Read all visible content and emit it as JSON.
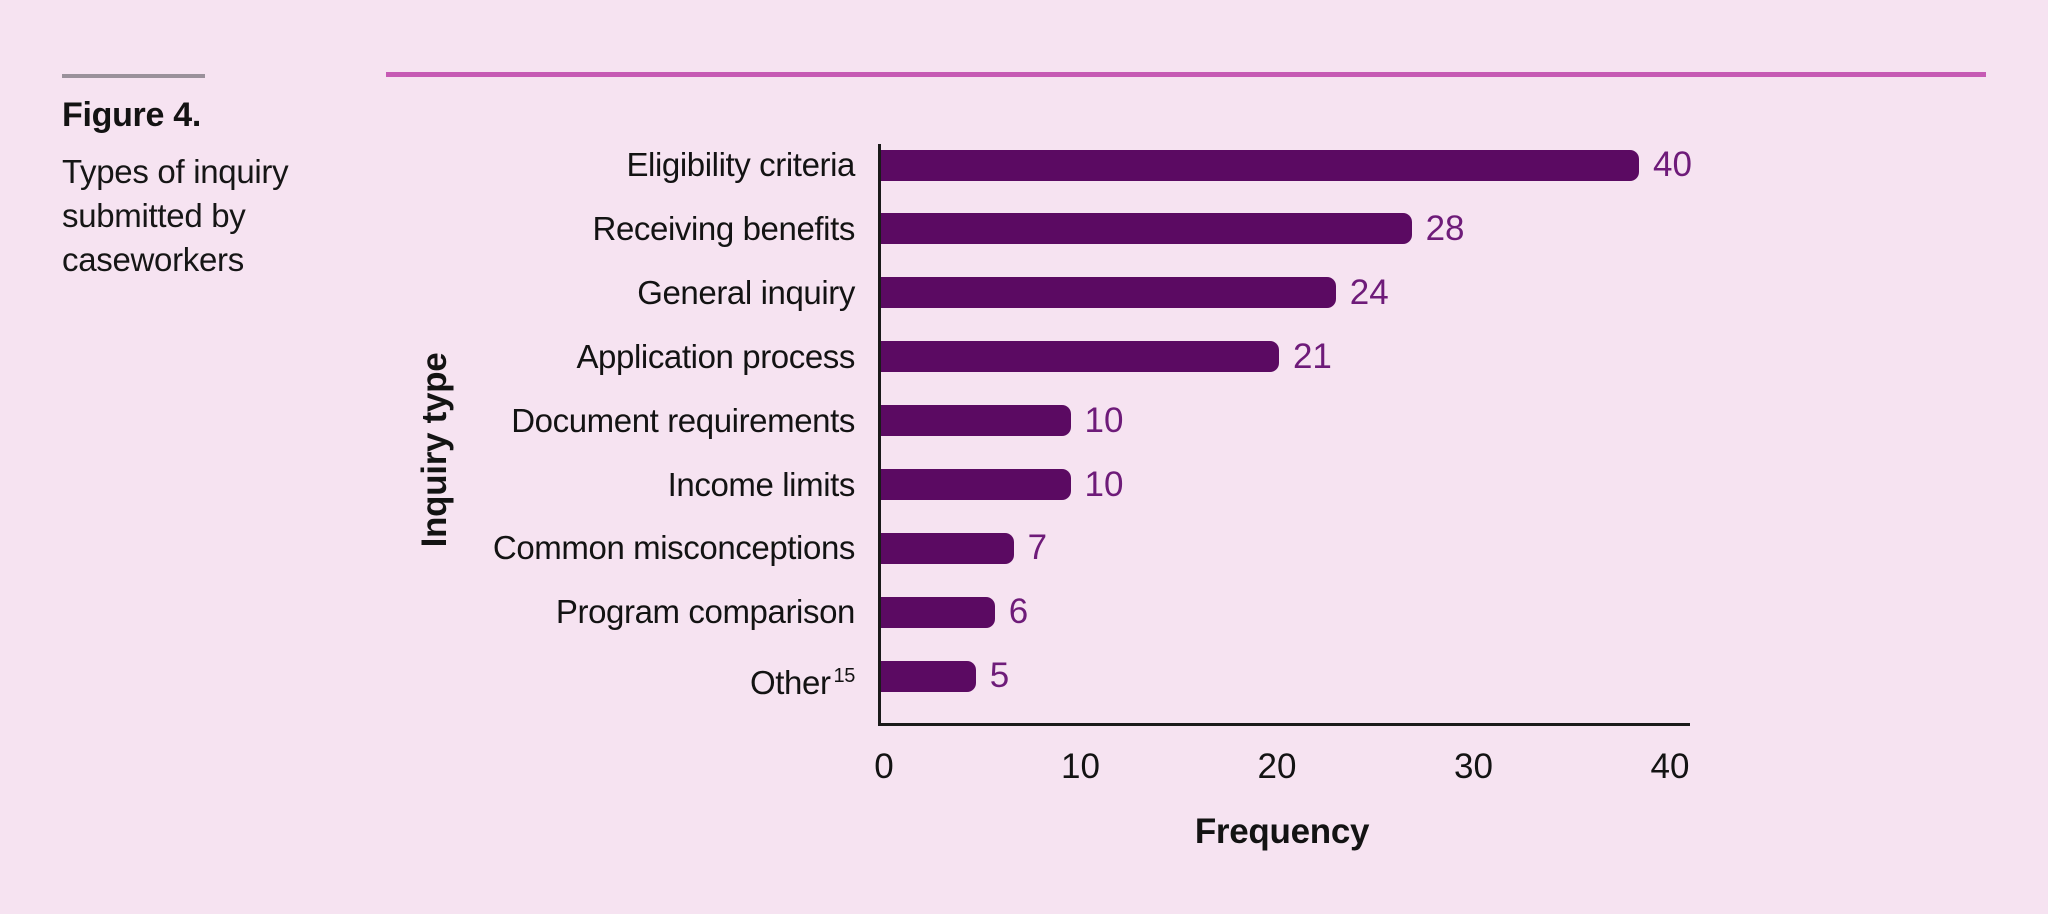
{
  "figure": {
    "label": "Figure 4.",
    "caption": "Types of inquiry submitted by caseworkers"
  },
  "chart_data": {
    "type": "bar",
    "orientation": "horizontal",
    "title": "Types of inquiry submitted by caseworkers",
    "categories": [
      "Eligibility criteria",
      "Receiving benefits",
      "General inquiry",
      "Application process",
      "Document requirements",
      "Income limits",
      "Common misconceptions",
      "Program comparison",
      "Other"
    ],
    "footnotes": {
      "8": "15"
    },
    "values": [
      40,
      28,
      24,
      21,
      10,
      10,
      7,
      6,
      5
    ],
    "xlabel": "Frequency",
    "ylabel": "Inquiry type",
    "x_ticks": [
      "0",
      "10",
      "20",
      "30",
      "40"
    ],
    "xlim": [
      0,
      40
    ],
    "grid": false,
    "legend": "none",
    "value_labels_shown": true
  },
  "colors": {
    "background": "#f6e3f1",
    "bar_fill": "#5b0a62",
    "value_label": "#6e1b79",
    "axis": "#1a1a1a",
    "text": "#131313",
    "top_rule": "#c65ab4",
    "header_rule": "#9a919b"
  }
}
